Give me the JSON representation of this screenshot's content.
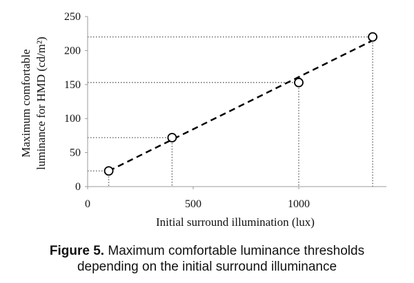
{
  "chart_data": {
    "type": "scatter",
    "x": [
      100,
      400,
      1000,
      1350
    ],
    "y": [
      23,
      72,
      153,
      220
    ],
    "xlabel": "Initial  surround illumination  (lux)",
    "ylabel_line1": "Maximum comfortable",
    "ylabel_line2": "luminance for HMD (cd/m²)",
    "xlim": [
      0,
      1350
    ],
    "ylim": [
      0,
      250
    ],
    "xticks": [
      "0",
      "500",
      "1000"
    ],
    "xtick_values": [
      0,
      500,
      1000
    ],
    "yticks": [
      "0",
      "50",
      "100",
      "150",
      "200",
      "250"
    ],
    "ytick_values": [
      0,
      50,
      100,
      150,
      200,
      250
    ],
    "trendline": "linear",
    "guide_lines": true,
    "grid": false
  },
  "caption": {
    "label": "Figure 5.",
    "line1": " Maximum comfortable luminance thresholds",
    "line2": "depending on the initial surround illuminance"
  },
  "colors": {
    "marker": "#000000",
    "trendline": "#000000",
    "guides": "#555555",
    "axis": "#999999"
  }
}
